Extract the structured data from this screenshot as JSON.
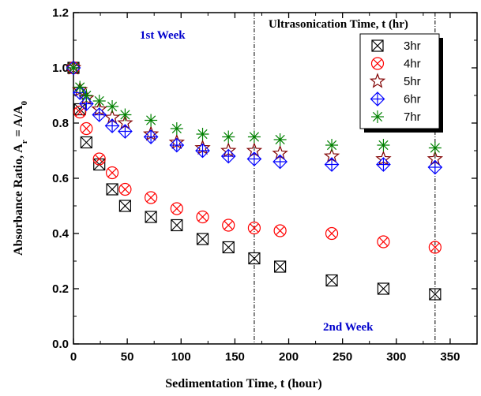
{
  "chart_data": {
    "type": "scatter",
    "xlabel": "Sedimentation Time, t (hour)",
    "ylabel_main": "Absorbance Ratio, A",
    "ylabel_sub_r": "r",
    "ylabel_eq": " = A/A",
    "ylabel_sub_0": "0",
    "xlim": [
      0,
      375
    ],
    "ylim": [
      0.0,
      1.2
    ],
    "x_ticks": [
      0,
      50,
      100,
      150,
      200,
      250,
      300,
      350
    ],
    "x_tick_labels": [
      "0",
      "50",
      "100",
      "150",
      "200",
      "250",
      "300",
      "350"
    ],
    "y_ticks": [
      0.0,
      0.2,
      0.4,
      0.6,
      0.8,
      1.0,
      1.2
    ],
    "y_tick_labels": [
      "0.0",
      "0.2",
      "0.4",
      "0.6",
      "0.8",
      "1.0",
      "1.2"
    ],
    "grid": false,
    "legend_position": "top-right",
    "vertical_lines": [
      168,
      336
    ],
    "annotations": {
      "week1": "1st Week",
      "week2": "2nd Week",
      "ultrasonication": "Ultrasonication Time, t (hr)"
    },
    "colors": {
      "3hr": "#000000",
      "4hr": "#ff0000",
      "5hr": "#800000",
      "6hr": "#0000ff",
      "7hr": "#008000",
      "annotation_blue": "#0000cc"
    },
    "series": [
      {
        "name": "3hr",
        "marker": "square-x",
        "x": [
          0,
          6,
          12,
          24,
          36,
          48,
          72,
          96,
          120,
          144,
          168,
          192,
          240,
          288,
          336
        ],
        "y": [
          1.0,
          0.85,
          0.73,
          0.65,
          0.56,
          0.5,
          0.46,
          0.43,
          0.38,
          0.35,
          0.31,
          0.28,
          0.23,
          0.2,
          0.18
        ]
      },
      {
        "name": "4hr",
        "marker": "circle-x",
        "x": [
          0,
          6,
          12,
          24,
          36,
          48,
          72,
          96,
          120,
          144,
          168,
          192,
          240,
          288,
          336
        ],
        "y": [
          1.0,
          0.84,
          0.78,
          0.67,
          0.62,
          0.56,
          0.53,
          0.49,
          0.46,
          0.43,
          0.42,
          0.41,
          0.4,
          0.37,
          0.35
        ]
      },
      {
        "name": "5hr",
        "marker": "star",
        "x": [
          0,
          6,
          12,
          24,
          36,
          48,
          72,
          96,
          120,
          144,
          168,
          192,
          240,
          288,
          336
        ],
        "y": [
          1.0,
          0.92,
          0.89,
          0.85,
          0.82,
          0.8,
          0.76,
          0.73,
          0.71,
          0.7,
          0.7,
          0.69,
          0.68,
          0.67,
          0.67
        ]
      },
      {
        "name": "6hr",
        "marker": "diamond-plus",
        "x": [
          0,
          6,
          12,
          24,
          36,
          48,
          72,
          96,
          120,
          144,
          168,
          192,
          240,
          288,
          336
        ],
        "y": [
          1.0,
          0.91,
          0.87,
          0.83,
          0.79,
          0.77,
          0.75,
          0.72,
          0.7,
          0.68,
          0.67,
          0.66,
          0.65,
          0.65,
          0.64
        ]
      },
      {
        "name": "7hr",
        "marker": "asterisk",
        "x": [
          0,
          6,
          12,
          24,
          36,
          48,
          72,
          96,
          120,
          144,
          168,
          192,
          240,
          288,
          336
        ],
        "y": [
          1.0,
          0.93,
          0.9,
          0.88,
          0.86,
          0.83,
          0.81,
          0.78,
          0.76,
          0.75,
          0.75,
          0.74,
          0.72,
          0.72,
          0.71
        ]
      }
    ]
  }
}
